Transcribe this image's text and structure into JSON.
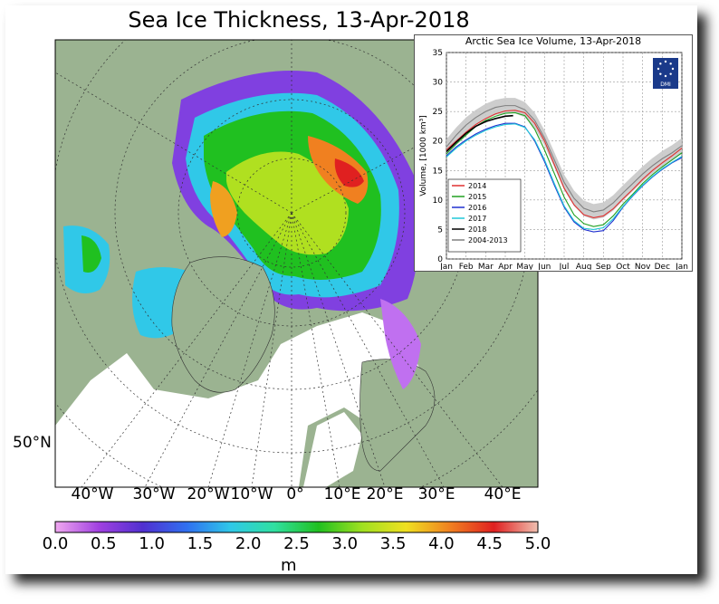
{
  "map": {
    "title": "Sea Ice Thickness, 13-Apr-2018",
    "longitude_labels": [
      "40°W",
      "30°W",
      "20°W",
      "10°W",
      "0°",
      "10°E",
      "20°E",
      "30°E",
      "40°E"
    ],
    "latitude_label": "50°N",
    "colorbar": {
      "ticks": [
        "0.0",
        "0.5",
        "1.0",
        "1.5",
        "2.0",
        "2.5",
        "3.0",
        "3.5",
        "4.0",
        "4.5",
        "5.0"
      ],
      "unit": "m",
      "range": [
        0,
        5
      ],
      "colors": [
        "#f0a8f0",
        "#a040e0",
        "#5030d0",
        "#3070f0",
        "#30c8e8",
        "#30e0a0",
        "#20c020",
        "#a0e020",
        "#f0e020",
        "#f08020",
        "#e02020",
        "#f0c0b0"
      ]
    },
    "colors": {
      "land": "#9bb391",
      "open_water": "#ffffff"
    }
  },
  "chart_data": {
    "type": "line",
    "title": "Arctic Sea Ice Volume, 13-Apr-2018",
    "ylabel": "Volume, [1000 km³]",
    "xlabel": "",
    "categories": [
      "Jan",
      "Feb",
      "Mar",
      "Apr",
      "May",
      "Jun",
      "Jul",
      "Aug",
      "Sep",
      "Oct",
      "Nov",
      "Dec",
      "Jan"
    ],
    "ylim": [
      0,
      35
    ],
    "yticks": [
      0,
      5,
      10,
      15,
      20,
      25,
      30,
      35
    ],
    "grid": true,
    "legend_position": "bottom-left",
    "logo_text": "DMI",
    "series": [
      {
        "name": "2014",
        "color": "#e03030",
        "x": [
          0,
          0.5,
          1,
          1.5,
          2,
          2.5,
          3,
          3.5,
          4,
          4.5,
          5,
          5.5,
          6,
          6.5,
          7,
          7.5,
          8,
          8.5,
          9,
          9.5,
          10,
          10.5,
          11,
          11.5,
          12
        ],
        "values": [
          18.5,
          20.0,
          21.5,
          22.8,
          23.8,
          24.6,
          25.1,
          25.2,
          24.8,
          23.0,
          20.0,
          16.0,
          12.0,
          9.2,
          7.5,
          7.0,
          7.3,
          8.5,
          10.2,
          11.8,
          13.5,
          15.0,
          16.3,
          17.5,
          18.8
        ]
      },
      {
        "name": "2015",
        "color": "#20a020",
        "x": [
          0,
          0.5,
          1,
          1.5,
          2,
          2.5,
          3,
          3.5,
          4,
          4.5,
          5,
          5.5,
          6,
          6.5,
          7,
          7.5,
          8,
          8.5,
          9,
          9.5,
          10,
          10.5,
          11,
          11.5,
          12
        ],
        "values": [
          17.8,
          19.5,
          21.0,
          22.5,
          23.5,
          24.2,
          24.7,
          24.8,
          24.3,
          22.0,
          18.5,
          14.5,
          10.5,
          7.5,
          6.0,
          5.5,
          5.8,
          7.3,
          9.3,
          11.0,
          12.8,
          14.3,
          15.6,
          16.8,
          18.0
        ]
      },
      {
        "name": "2016",
        "color": "#2030d0",
        "x": [
          0,
          0.5,
          1,
          1.5,
          2,
          2.5,
          3,
          3.5,
          4,
          4.5,
          5,
          5.5,
          6,
          6.5,
          7,
          7.5,
          8,
          8.5,
          9,
          9.5,
          10,
          10.5,
          11,
          11.5,
          12
        ],
        "values": [
          17.5,
          19.0,
          20.2,
          21.2,
          22.0,
          22.6,
          23.0,
          23.0,
          22.4,
          20.0,
          16.5,
          12.5,
          8.8,
          6.3,
          5.0,
          4.6,
          4.8,
          6.5,
          8.8,
          10.7,
          12.4,
          13.9,
          15.2,
          16.3,
          17.2
        ]
      },
      {
        "name": "2017",
        "color": "#20c8d8",
        "x": [
          0,
          0.5,
          1,
          1.5,
          2,
          2.5,
          3,
          3.5,
          4,
          4.5,
          5,
          5.5,
          6,
          6.5,
          7,
          7.5,
          8,
          8.5,
          9,
          9.5,
          10,
          10.5,
          11,
          11.5,
          12
        ],
        "values": [
          17.3,
          18.8,
          20.0,
          21.0,
          21.8,
          22.4,
          22.8,
          22.9,
          22.3,
          20.2,
          16.8,
          12.8,
          9.0,
          6.5,
          5.2,
          5.0,
          5.3,
          6.8,
          8.9,
          10.8,
          12.5,
          14.0,
          15.3,
          16.4,
          17.4
        ]
      },
      {
        "name": "2018",
        "color": "#000000",
        "x": [
          0,
          0.5,
          1,
          1.5,
          2,
          2.5,
          3,
          3.4
        ],
        "values": [
          18.2,
          19.8,
          21.3,
          22.5,
          23.3,
          23.8,
          24.2,
          24.3
        ]
      },
      {
        "name": "2004-2013",
        "color": "#808080",
        "band_color": "#c8c8c8",
        "x": [
          0,
          0.5,
          1,
          1.5,
          2,
          2.5,
          3,
          3.5,
          4,
          4.5,
          5,
          5.5,
          6,
          6.5,
          7,
          7.5,
          8,
          8.5,
          9,
          9.5,
          10,
          10.5,
          11,
          11.5,
          12
        ],
        "values": [
          19.0,
          21.0,
          22.7,
          24.0,
          25.0,
          25.7,
          26.0,
          26.0,
          25.3,
          23.5,
          20.5,
          16.8,
          13.0,
          10.3,
          8.6,
          8.0,
          8.3,
          9.5,
          11.2,
          12.8,
          14.4,
          15.8,
          17.0,
          18.0,
          19.2
        ]
      }
    ]
  }
}
